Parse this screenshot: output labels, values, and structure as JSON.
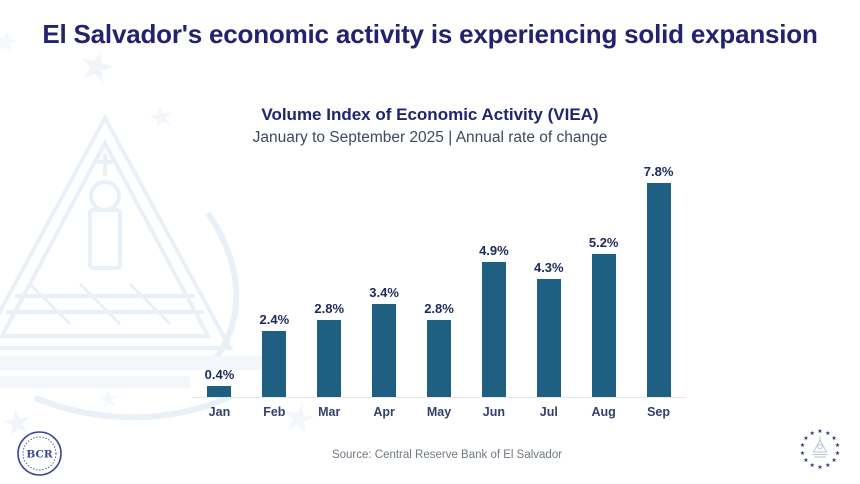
{
  "page": {
    "title": "El Salvador's economic activity is experiencing solid expansion"
  },
  "chart": {
    "title": "Volume Index of Economic Activity (VIEA)",
    "subtitle": "January to September 2025 | Annual rate of change"
  },
  "chart_data": {
    "type": "bar",
    "title": "Volume Index of Economic Activity (VIEA)",
    "subtitle": "January to September 2025 | Annual rate of change",
    "categories": [
      "Jan",
      "Feb",
      "Mar",
      "Apr",
      "May",
      "Jun",
      "Jul",
      "Aug",
      "Sep"
    ],
    "values": [
      0.4,
      2.4,
      2.8,
      3.4,
      2.8,
      4.9,
      4.3,
      5.2,
      7.8
    ],
    "value_labels": [
      "0.4%",
      "2.4%",
      "2.8%",
      "3.4%",
      "2.8%",
      "4.9%",
      "4.3%",
      "5.2%",
      "7.8%"
    ],
    "xlabel": "",
    "ylabel": "",
    "ylim": [
      0,
      8
    ],
    "grid": false,
    "legend": "none",
    "bar_color": "#1E5F82",
    "value_label_color": "#1C2A5E",
    "axis_line_color": "#E7E7E7"
  },
  "footer": {
    "source": "Source: Central Reserve Bank of El Salvador"
  },
  "branding": {
    "bcr_logo_text": "BCR"
  },
  "icons": {
    "bcr-logo": "circular seal with BCR letters",
    "el-salvador-emblem": "ring of stars around national coat of arms",
    "star-watermark": "★",
    "coat-of-arms-watermark": "faint national coat of arms"
  },
  "colors": {
    "title_navy": "#222271",
    "bar_teal": "#1E5F82",
    "subtitle_gray": "#3D4A5C",
    "source_gray": "#6F7880",
    "watermark_blue": "#F1F5FA",
    "emblem_navy": "#2A3575",
    "logo_navy": "#3A4694"
  }
}
